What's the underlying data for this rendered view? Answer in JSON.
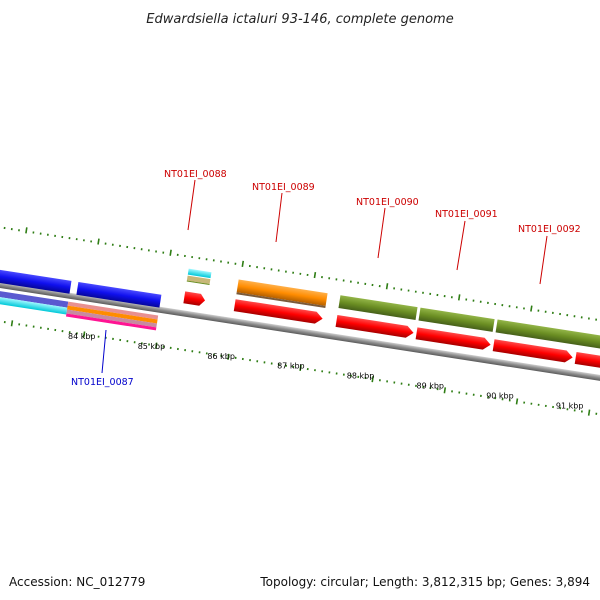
{
  "title": "Edwardsiella ictaluri 93-146, complete genome",
  "footer": {
    "accession": "Accession: NC_012779",
    "summary": "Topology: circular; Length: 3,812,315 bp; Genes: 3,894"
  },
  "ticks": [
    {
      "kb": 84,
      "label": "84 kbp"
    },
    {
      "kb": 85,
      "label": "85 kbp"
    },
    {
      "kb": 86,
      "label": "86 kbp"
    },
    {
      "kb": 87,
      "label": "87 kbp"
    },
    {
      "kb": 88,
      "label": "88 kbp"
    },
    {
      "kb": 89,
      "label": "89 kbp"
    },
    {
      "kb": 90,
      "label": "90 kbp"
    },
    {
      "kb": 91,
      "label": "91 kbp"
    }
  ],
  "gene_labels": [
    {
      "name": "NT01EI_0087",
      "color": "#0000cc"
    },
    {
      "name": "NT01EI_0088",
      "color": "#cc0000"
    },
    {
      "name": "NT01EI_0089",
      "color": "#cc0000"
    },
    {
      "name": "NT01EI_0090",
      "color": "#cc0000"
    },
    {
      "name": "NT01EI_0091",
      "color": "#cc0000"
    },
    {
      "name": "NT01EI_0092",
      "color": "#cc0000"
    }
  ],
  "colors": {
    "backbone": "#8c8c8c",
    "tick_marks": "#2e7d14",
    "gene_reverse": "#1010ee",
    "gene_forward_0088": "#00e5ee",
    "gene_forward_0089": "#ff8c00",
    "gene_forward_0090_0092": "#6b8e23",
    "cds_forward": "#ff0000",
    "cds_reverse": "#1010ee"
  }
}
